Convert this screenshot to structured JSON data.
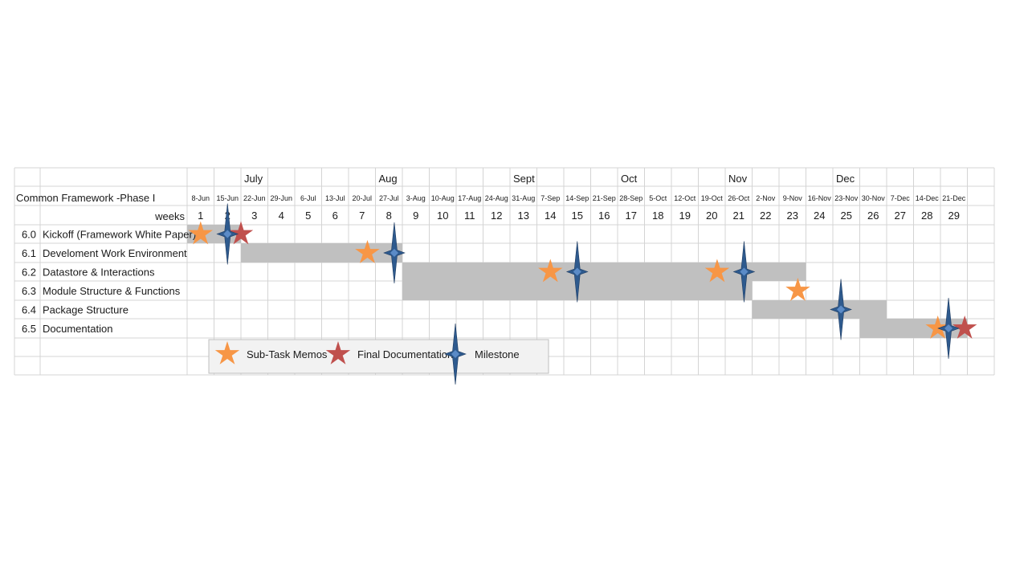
{
  "chart_data": {
    "type": "gantt",
    "title": "Common Framework -Phase I",
    "week_row_label": "weeks",
    "months": [
      {
        "label": "July",
        "week": 3
      },
      {
        "label": "Aug",
        "week": 8
      },
      {
        "label": "Sept",
        "week": 13
      },
      {
        "label": "Oct",
        "week": 17
      },
      {
        "label": "Nov",
        "week": 21
      },
      {
        "label": "Dec",
        "week": 25
      }
    ],
    "weeks": [
      {
        "num": "1",
        "date": "8-Jun"
      },
      {
        "num": "2",
        "date": "15-Jun"
      },
      {
        "num": "3",
        "date": "22-Jun"
      },
      {
        "num": "4",
        "date": "29-Jun"
      },
      {
        "num": "5",
        "date": "6-Jul"
      },
      {
        "num": "6",
        "date": "13-Jul"
      },
      {
        "num": "7",
        "date": "20-Jul"
      },
      {
        "num": "8",
        "date": "27-Jul"
      },
      {
        "num": "9",
        "date": "3-Aug"
      },
      {
        "num": "10",
        "date": "10-Aug"
      },
      {
        "num": "11",
        "date": "17-Aug"
      },
      {
        "num": "12",
        "date": "24-Aug"
      },
      {
        "num": "13",
        "date": "31-Aug"
      },
      {
        "num": "14",
        "date": "7-Sep"
      },
      {
        "num": "15",
        "date": "14-Sep"
      },
      {
        "num": "16",
        "date": "21-Sep"
      },
      {
        "num": "17",
        "date": "28-Sep"
      },
      {
        "num": "18",
        "date": "5-Oct"
      },
      {
        "num": "19",
        "date": "12-Oct"
      },
      {
        "num": "20",
        "date": "19-Oct"
      },
      {
        "num": "21",
        "date": "26-Oct"
      },
      {
        "num": "22",
        "date": "2-Nov"
      },
      {
        "num": "23",
        "date": "9-Nov"
      },
      {
        "num": "24",
        "date": "16-Nov"
      },
      {
        "num": "25",
        "date": "23-Nov"
      },
      {
        "num": "26",
        "date": "30-Nov"
      },
      {
        "num": "27",
        "date": "7-Dec"
      },
      {
        "num": "28",
        "date": "14-Dec"
      },
      {
        "num": "29",
        "date": "21-Dec"
      }
    ],
    "tasks": [
      {
        "id": "6.0",
        "name": "Kickoff (Framework White Paper)",
        "start_week": 1,
        "end_week": 2
      },
      {
        "id": "6.1",
        "name": "Develoment Work Environment",
        "start_week": 3,
        "end_week": 8
      },
      {
        "id": "6.2",
        "name": "Datastore & Interactions",
        "start_week": 9,
        "end_week": 23
      },
      {
        "id": "6.3",
        "name": "Module Structure & Functions",
        "start_week": 9,
        "end_week": 21
      },
      {
        "id": "6.4",
        "name": "Package Structure",
        "start_week": 22,
        "end_week": 26
      },
      {
        "id": "6.5",
        "name": "Documentation",
        "start_week": 26,
        "end_week": 29
      }
    ],
    "markers": [
      {
        "task": "6.0",
        "kind": "memo",
        "week": 1.0
      },
      {
        "task": "6.0",
        "kind": "milestone",
        "week": 2.0
      },
      {
        "task": "6.0",
        "kind": "final",
        "week": 2.5
      },
      {
        "task": "6.1",
        "kind": "memo",
        "week": 7.2
      },
      {
        "task": "6.1",
        "kind": "milestone",
        "week": 8.2
      },
      {
        "task": "6.2",
        "kind": "memo",
        "week": 14.0
      },
      {
        "task": "6.2",
        "kind": "milestone",
        "week": 15.0
      },
      {
        "task": "6.2",
        "kind": "memo",
        "week": 20.2
      },
      {
        "task": "6.2",
        "kind": "milestone",
        "week": 21.2
      },
      {
        "task": "6.3",
        "kind": "memo",
        "week": 23.2
      },
      {
        "task": "6.4",
        "kind": "milestone",
        "week": 24.8
      },
      {
        "task": "6.5",
        "kind": "memo",
        "week": 28.4
      },
      {
        "task": "6.5",
        "kind": "milestone",
        "week": 28.8
      },
      {
        "task": "6.5",
        "kind": "final",
        "week": 29.4
      }
    ],
    "legend": [
      {
        "kind": "memo",
        "label": "Sub-Task Memos"
      },
      {
        "kind": "final",
        "label": "Final Documentation"
      },
      {
        "kind": "milestone",
        "label": "Milestone"
      }
    ],
    "colors": {
      "bar": "#c0c0c0",
      "memo": "#f79646",
      "final": "#c0504d",
      "milestone": "#2e5a8e",
      "milestone_highlight": "#5b8bc7",
      "grid": "#d4d4d4",
      "legend_fill": "#f2f2f2",
      "legend_border": "#bfbfbf"
    }
  }
}
